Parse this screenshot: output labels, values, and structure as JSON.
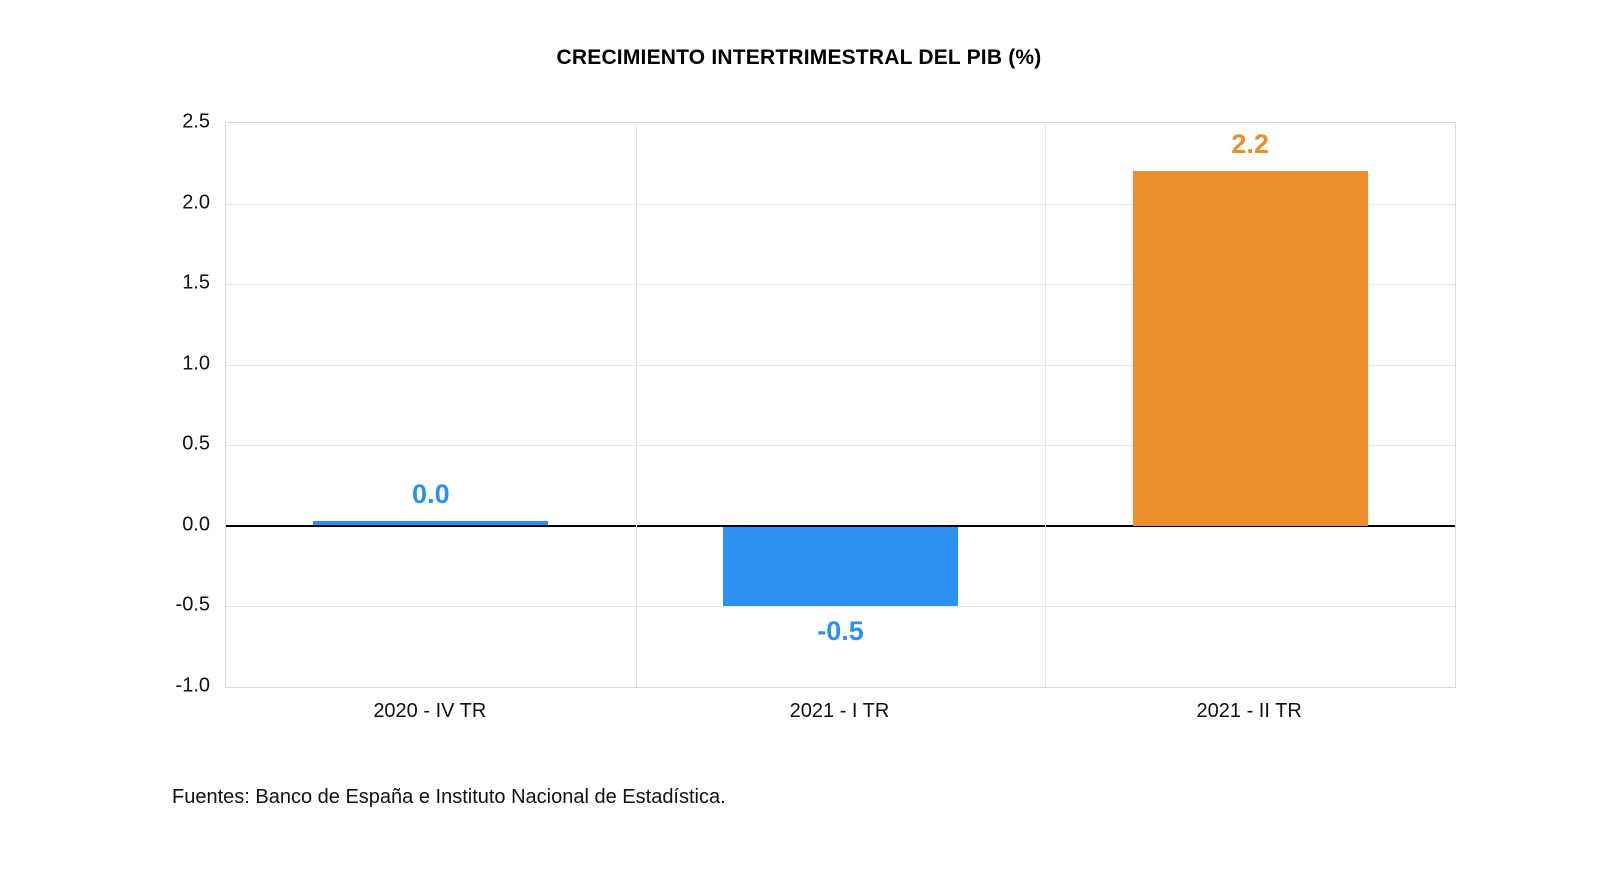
{
  "chart_data": {
    "type": "bar",
    "title": "CRECIMIENTO INTERTRIMESTRAL DEL PIB (%)",
    "categories": [
      "2020 - IV TR",
      "2021 - I TR",
      "2021 - II TR"
    ],
    "values": [
      0.0,
      -0.5,
      2.2
    ],
    "value_labels": [
      "0.0",
      "-0.5",
      "2.2"
    ],
    "bar_colors": [
      "#2b90f2",
      "#2b90f2",
      "#ed8e2d"
    ],
    "label_colors": [
      "#2b90f2",
      "#2b90f2",
      "#ed8e2d"
    ],
    "xlabel": "",
    "ylabel": "",
    "ylim": [
      -1.0,
      2.5
    ],
    "yticks": [
      2.5,
      2.0,
      1.5,
      1.0,
      0.5,
      0.0,
      -0.5,
      -1.0
    ],
    "ytick_labels": [
      "2.5",
      "2.0",
      "1.5",
      "1.0",
      "0.5",
      "0.0",
      "-0.5",
      "-1.0"
    ],
    "grid": true,
    "legend": "none",
    "grid_color": "#e4e4e4",
    "zero_line_color": "#000000",
    "source_note": "Fuentes: Banco de España e Instituto Nacional de Estadística."
  }
}
